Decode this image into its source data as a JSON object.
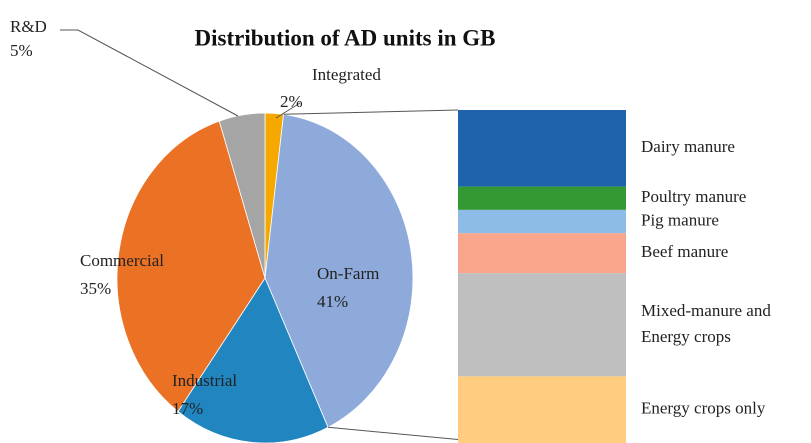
{
  "chart_data": [
    {
      "type": "pie",
      "title": "Distribution of AD units in GB",
      "categories": [
        "Integrated",
        "On-Farm",
        "Industrial",
        "Commercial",
        "R&D"
      ],
      "values": [
        2,
        41,
        17,
        35,
        5
      ],
      "value_labels": [
        "2%",
        "41%",
        "17%",
        "35%",
        "5%"
      ],
      "colors": [
        "#f5a800",
        "#8eaadb",
        "#2185c0",
        "#eb7124",
        "#a5a5a5"
      ]
    },
    {
      "type": "bar",
      "categories": [
        "Dairy manure",
        "Poultry manure",
        "Pig manure",
        "Beef manure",
        "Mixed-manure and Energy crops",
        "Energy crops only"
      ],
      "values": [
        23,
        7,
        7,
        12,
        31,
        20
      ],
      "colors": [
        "#1f63ad",
        "#339933",
        "#8dbde6",
        "#f9a68c",
        "#bfbfbf",
        "#ffcc80"
      ]
    }
  ]
}
